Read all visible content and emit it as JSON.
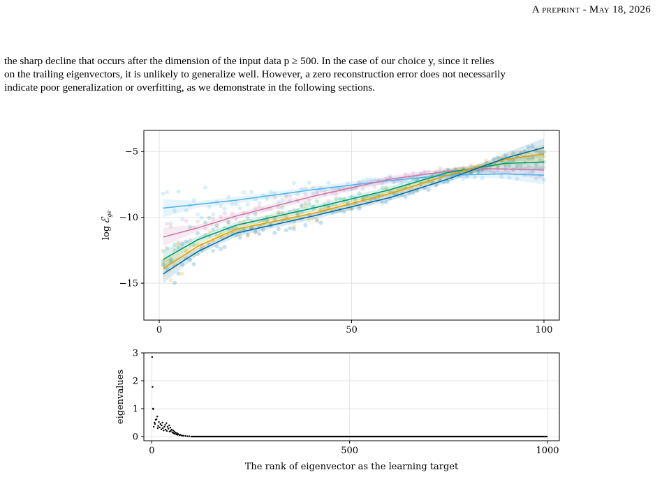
{
  "header": {
    "text": "A preprint - May 18, 2026"
  },
  "paragraph": {
    "lines": [
      "the sharp decline that occurs after the dimension of the input data p ≥ 500. In the case of our choice y, since it relies",
      "on the trailing eigenvectors, it is unlikely to generalize well. However, a zero reconstruction error does not necessarily",
      "indicate poor generalization or overfitting, as we demonstrate in the following sections."
    ]
  },
  "chart_data": [
    {
      "type": "scatter",
      "title": "",
      "xlabel": "",
      "ylabel": "log ℰ_ge",
      "xlim": [
        -4,
        104
      ],
      "ylim": [
        -17.8,
        -3.4
      ],
      "xticks": [
        "0",
        "50",
        "100"
      ],
      "yticks": [
        "−5",
        "−10",
        "−15"
      ],
      "xtick_values": [
        0,
        50,
        100
      ],
      "ytick_values": [
        -5,
        -10,
        -15
      ],
      "grid": true,
      "series": [
        {
          "color": "#56b4e9",
          "fit": [
            [
              1,
              -9.3
            ],
            [
              20,
              -8.7
            ],
            [
              40,
              -7.9
            ],
            [
              60,
              -7.2
            ],
            [
              75,
              -6.8
            ],
            [
              90,
              -6.7
            ],
            [
              100,
              -6.8
            ]
          ]
        },
        {
          "color": "#cc79a7",
          "fit": [
            [
              1,
              -11.5
            ],
            [
              10,
              -10.8
            ],
            [
              20,
              -9.9
            ],
            [
              40,
              -8.4
            ],
            [
              60,
              -7.1
            ],
            [
              75,
              -6.5
            ],
            [
              85,
              -6.3
            ],
            [
              100,
              -6.4
            ]
          ]
        },
        {
          "color": "#009e73",
          "fit": [
            [
              1,
              -13.2
            ],
            [
              10,
              -11.7
            ],
            [
              20,
              -10.6
            ],
            [
              40,
              -9.3
            ],
            [
              60,
              -7.9
            ],
            [
              75,
              -6.6
            ],
            [
              90,
              -5.9
            ],
            [
              100,
              -5.8
            ]
          ]
        },
        {
          "color": "#e69f00",
          "fit": [
            [
              1,
              -13.9
            ],
            [
              10,
              -12.2
            ],
            [
              20,
              -10.9
            ],
            [
              40,
              -9.7
            ],
            [
              60,
              -8.2
            ],
            [
              75,
              -6.8
            ],
            [
              90,
              -5.6
            ],
            [
              100,
              -5.2
            ]
          ]
        },
        {
          "color": "#0072b2",
          "fit": [
            [
              1,
              -14.3
            ],
            [
              10,
              -12.6
            ],
            [
              20,
              -11.2
            ],
            [
              40,
              -9.9
            ],
            [
              60,
              -8.5
            ],
            [
              75,
              -7.1
            ],
            [
              90,
              -5.5
            ],
            [
              100,
              -4.7
            ]
          ]
        }
      ]
    },
    {
      "type": "scatter",
      "title": "",
      "xlabel": "The rank of eigenvector as the learning target",
      "ylabel": "eigenvalues",
      "xlim": [
        -20,
        1030
      ],
      "ylim": [
        -0.15,
        3.0
      ],
      "xticks": [
        "0",
        "500",
        "1000"
      ],
      "yticks": [
        "0",
        "1",
        "2",
        "3"
      ],
      "xtick_values": [
        0,
        500,
        1000
      ],
      "ytick_values": [
        0,
        1,
        2,
        3
      ],
      "grid": true,
      "series": [
        {
          "color": "#000000",
          "values": [
            [
              1,
              2.85
            ],
            [
              2,
              1.78
            ],
            [
              3,
              1.0
            ],
            [
              4,
              0.98
            ],
            [
              5,
              0.35
            ],
            [
              7,
              0.5
            ],
            [
              8,
              0.45
            ],
            [
              10,
              0.6
            ],
            [
              12,
              0.62
            ],
            [
              14,
              0.72
            ],
            [
              15,
              0.3
            ],
            [
              16,
              0.38
            ],
            [
              18,
              0.52
            ],
            [
              20,
              0.33
            ],
            [
              22,
              0.45
            ],
            [
              24,
              0.26
            ],
            [
              25,
              0.4
            ],
            [
              27,
              0.5
            ],
            [
              28,
              0.3
            ],
            [
              30,
              0.22
            ],
            [
              32,
              0.35
            ],
            [
              34,
              0.42
            ],
            [
              35,
              0.25
            ],
            [
              37,
              0.48
            ],
            [
              38,
              0.2
            ],
            [
              40,
              0.35
            ],
            [
              42,
              0.28
            ],
            [
              44,
              0.4
            ],
            [
              45,
              0.18
            ],
            [
              47,
              0.32
            ],
            [
              48,
              0.2
            ],
            [
              50,
              0.25
            ],
            [
              52,
              0.15
            ],
            [
              54,
              0.22
            ],
            [
              55,
              0.12
            ],
            [
              57,
              0.18
            ],
            [
              58,
              0.1
            ],
            [
              60,
              0.14
            ],
            [
              62,
              0.08
            ],
            [
              64,
              0.12
            ],
            [
              65,
              0.06
            ],
            [
              67,
              0.09
            ],
            [
              70,
              0.05
            ],
            [
              72,
              0.06
            ],
            [
              75,
              0.04
            ],
            [
              78,
              0.03
            ],
            [
              80,
              0.03
            ],
            [
              85,
              0.02
            ],
            [
              90,
              0.01
            ],
            [
              95,
              0.01
            ],
            [
              100,
              0.0
            ]
          ]
        }
      ]
    }
  ]
}
